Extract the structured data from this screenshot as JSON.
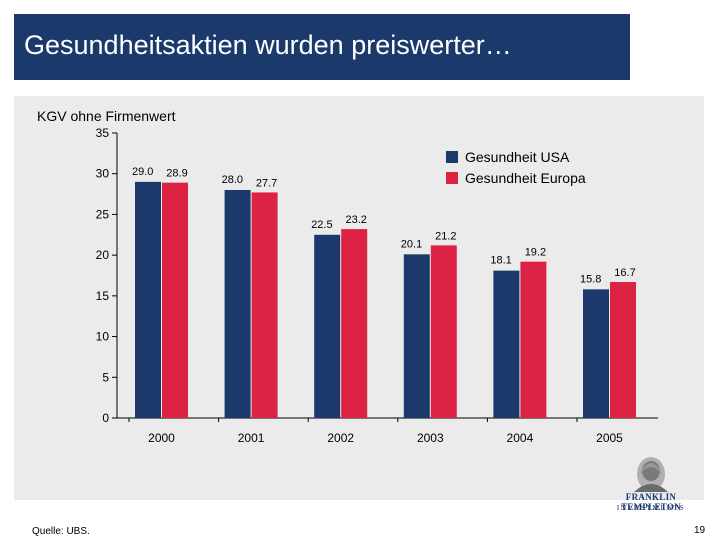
{
  "slide": {
    "title": "Gesundheitsaktien wurden preiswerter…",
    "source": "Quelle: UBS.",
    "page_number": "19"
  },
  "logo": {
    "line1": "FRANKLIN TEMPLETON",
    "line2": "INVESTMENTS"
  },
  "chart_data": {
    "type": "bar",
    "title": "KGV ohne Firmenwert",
    "categories": [
      "2000",
      "2001",
      "2002",
      "2003",
      "2004",
      "2005"
    ],
    "series": [
      {
        "name": "Gesundheit USA",
        "color": "#1b3a6b",
        "values": [
          29.0,
          28.0,
          22.5,
          20.1,
          18.1,
          15.8
        ],
        "labels": [
          "29.0",
          "28.0",
          "22.5",
          "20.1",
          "18.1",
          "15.8"
        ]
      },
      {
        "name": "Gesundheit Europa",
        "color": "#dc2343",
        "values": [
          28.9,
          27.7,
          23.2,
          21.2,
          19.2,
          16.7
        ],
        "labels": [
          "28.9",
          "27.7",
          "23.2",
          "21.2",
          "19.2",
          "16.7"
        ]
      }
    ],
    "ylim": [
      0,
      35
    ],
    "yticks": [
      0,
      5,
      10,
      15,
      20,
      25,
      30,
      35
    ],
    "legend": "top-right",
    "grid": false
  }
}
